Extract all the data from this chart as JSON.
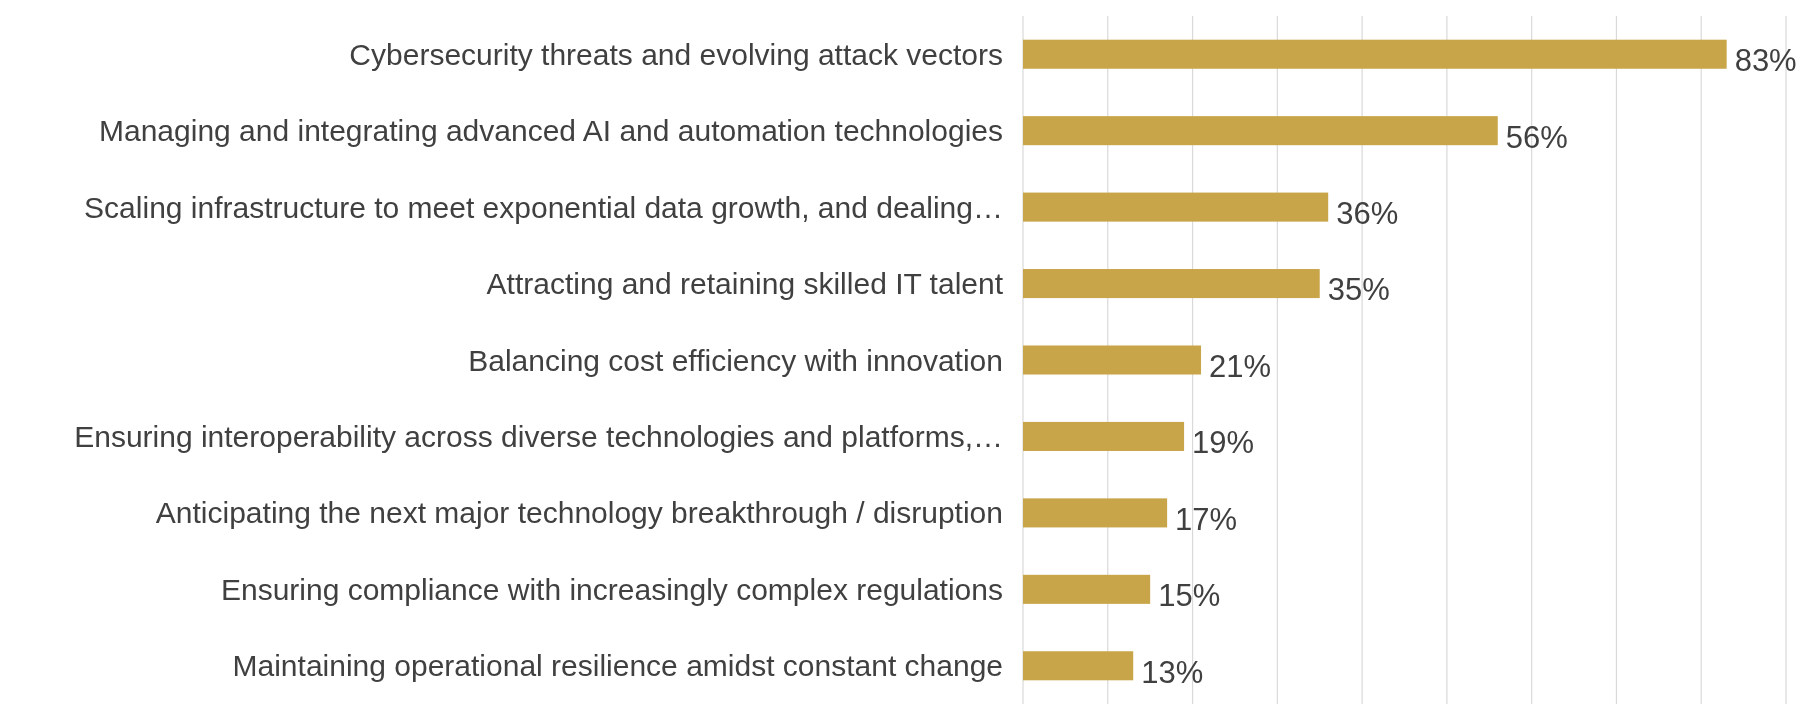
{
  "chart_data": {
    "type": "bar",
    "orientation": "horizontal",
    "categories": [
      "Cybersecurity threats and evolving attack vectors",
      "Managing and integrating advanced AI and automation technologies",
      "Scaling infrastructure to meet exponential data growth, and dealing…",
      "Attracting and retaining skilled IT talent",
      "Balancing cost efficiency with innovation",
      "Ensuring interoperability across diverse technologies and platforms,…",
      "Anticipating the next major technology breakthrough / disruption",
      "Ensuring compliance with increasingly complex regulations",
      "Maintaining operational resilience amidst constant change"
    ],
    "values": [
      83,
      56,
      36,
      35,
      21,
      19,
      17,
      15,
      13
    ],
    "value_labels": [
      "83%",
      "56%",
      "36%",
      "35%",
      "21%",
      "19%",
      "17%",
      "15%",
      "13%"
    ],
    "color": "#c9a54a",
    "xlim": [
      0,
      90
    ],
    "xticks": [
      {
        "value": 0,
        "label": null
      },
      {
        "value": 10,
        "label": null
      },
      {
        "value": 20,
        "label": null
      },
      {
        "value": 30,
        "label": null
      },
      {
        "value": 40,
        "label": null
      },
      {
        "value": 50,
        "label": null
      },
      {
        "value": 60,
        "label": null
      },
      {
        "value": 70,
        "label": null
      },
      {
        "value": 80,
        "label": null
      },
      {
        "value": 90,
        "label": null
      }
    ],
    "grid": "x",
    "tick_labels": "y"
  }
}
